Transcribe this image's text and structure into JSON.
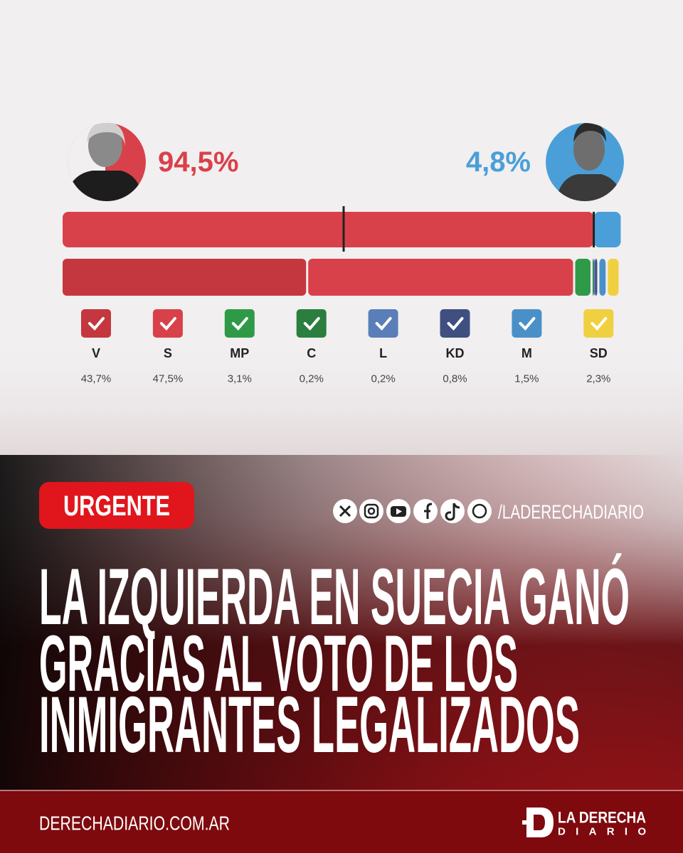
{
  "chart_data": {
    "type": "bar",
    "xlim": [
      0,
      100
    ],
    "blocs": {
      "values": [
        94.5,
        4.8
      ],
      "value_labels": [
        "94,5%",
        "4,8%"
      ],
      "colors": [
        "#d9414a",
        "#4a9fd8"
      ]
    },
    "categories": [
      "V",
      "S",
      "MP",
      "C",
      "L",
      "KD",
      "M",
      "SD"
    ],
    "values": [
      43.7,
      47.5,
      3.1,
      0.2,
      0.2,
      0.8,
      1.5,
      2.3
    ],
    "value_labels": [
      "43,7%",
      "47,5%",
      "3,1%",
      "0,2%",
      "0,2%",
      "0,8%",
      "1,5%",
      "2,3%"
    ],
    "colors": [
      "#c4373f",
      "#d9414a",
      "#2e9a48",
      "#2a7f3f",
      "#5a7fb8",
      "#3f4f80",
      "#4a90c8",
      "#f0d040"
    ]
  },
  "badge": "URGENTE",
  "social_handle": "/LADERECHADIARIO",
  "headline": [
    "LA IZQUIERDA EN SUECIA GANÓ",
    "GRACIAS AL VOTO DE LOS",
    "INMIGRANTES LEGALIZADOS"
  ],
  "footer": {
    "url": "DERECHADIARIO.COM.AR",
    "brand": [
      "LA DERECHA",
      "DIARIO"
    ]
  }
}
